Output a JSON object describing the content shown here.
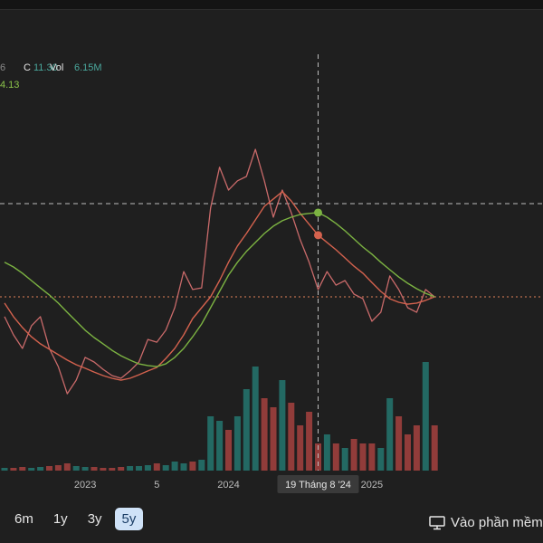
{
  "header": {
    "prev": "6",
    "close_label": "C",
    "close": "11.30",
    "vol_label": "Vol",
    "vol": "6.15M",
    "ma": "4.13"
  },
  "chart_data": {
    "type": "line",
    "categories": [
      null,
      null,
      null,
      null,
      null,
      null,
      null,
      null,
      null,
      "2023",
      null,
      null,
      null,
      null,
      null,
      null,
      null,
      "5",
      null,
      null,
      null,
      null,
      null,
      null,
      null,
      "2024",
      null,
      null,
      null,
      null,
      null,
      null,
      null,
      null,
      null,
      "19 Tháng 8 '24",
      null,
      null,
      null,
      null,
      null,
      "2025",
      null,
      null,
      null,
      null,
      null,
      null,
      null
    ],
    "series": [
      {
        "color": "#c96a6a",
        "values": [
          10.57,
          9.9,
          9.4,
          10.23,
          10.57,
          9.4,
          8.73,
          7.73,
          8.23,
          9.07,
          8.9,
          8.63,
          8.4,
          8.3,
          8.57,
          8.9,
          9.73,
          9.63,
          10.07,
          10.9,
          12.23,
          11.57,
          11.63,
          14.57,
          16.07,
          15.23,
          15.57,
          15.73,
          16.73,
          15.57,
          14.23,
          15.23,
          14.4,
          13.4,
          12.57,
          11.57,
          12.23,
          11.73,
          11.9,
          11.4,
          11.23,
          10.4,
          10.73,
          12.07,
          11.57,
          10.9,
          10.73,
          11.57,
          11.3
        ]
      },
      {
        "color": "#d4624e",
        "values": [
          11.07,
          10.57,
          10.17,
          9.83,
          9.57,
          9.37,
          9.17,
          8.97,
          8.8,
          8.67,
          8.53,
          8.4,
          8.3,
          8.23,
          8.3,
          8.43,
          8.57,
          8.7,
          9.03,
          9.4,
          9.9,
          10.5,
          10.9,
          11.3,
          11.9,
          12.57,
          13.17,
          13.63,
          14.13,
          14.63,
          14.9,
          15.17,
          14.83,
          14.37,
          13.97,
          13.57,
          13.3,
          13.03,
          12.73,
          12.43,
          12.17,
          11.83,
          11.5,
          11.23,
          11.1,
          11.03,
          11.07,
          11.17,
          11.3
        ]
      },
      {
        "color": "#7cb342",
        "values": [
          12.57,
          12.4,
          12.17,
          11.9,
          11.63,
          11.37,
          11.07,
          10.73,
          10.4,
          10.07,
          9.8,
          9.57,
          9.33,
          9.13,
          8.97,
          8.83,
          8.77,
          8.73,
          8.83,
          9.07,
          9.4,
          9.83,
          10.3,
          10.9,
          11.5,
          12.1,
          12.57,
          12.97,
          13.3,
          13.63,
          13.9,
          14.1,
          14.23,
          14.33,
          14.37,
          14.4,
          14.23,
          14.0,
          13.73,
          13.43,
          13.13,
          12.87,
          12.57,
          12.3,
          12.03,
          11.8,
          11.6,
          11.43,
          11.3
        ]
      }
    ],
    "volume": {
      "up_color": "#26a69a",
      "down_color": "#ef5350",
      "ylim": [
        0,
        46
      ],
      "values": [
        0.3,
        0.3,
        0.4,
        0.3,
        0.4,
        0.5,
        0.6,
        0.8,
        0.5,
        0.4,
        0.4,
        0.3,
        0.3,
        0.4,
        0.5,
        0.5,
        0.6,
        0.8,
        0.6,
        1.0,
        0.8,
        1.0,
        1.2,
        6.0,
        5.5,
        4.5,
        6.0,
        9.0,
        11.5,
        8.0,
        7.0,
        10.0,
        7.5,
        5.0,
        6.5,
        3.0,
        4.0,
        3.0,
        2.5,
        3.5,
        3.0,
        3.0,
        2.5,
        8.0,
        6.0,
        4.0,
        5.0,
        12.0,
        5.0
      ]
    },
    "ylim": [
      4.9,
      20.23
    ],
    "crosshair_index": 35,
    "last_price_line_color": "#e0805a"
  },
  "range_buttons": {
    "options": [
      "6m",
      "1y",
      "3y",
      "5y"
    ],
    "selected": 3
  },
  "open_app": "Vào phần mềm"
}
